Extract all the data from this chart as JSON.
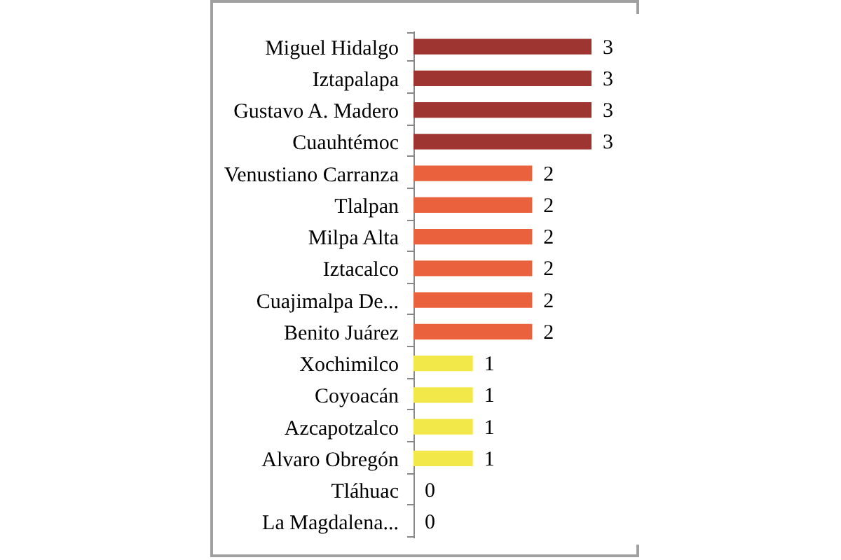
{
  "chart_data": {
    "type": "bar",
    "orientation": "horizontal",
    "data_labels": true,
    "categories": [
      "Miguel Hidalgo",
      "Iztapalapa",
      "Gustavo A. Madero",
      "Cuauhtémoc",
      "Venustiano Carranza",
      "Tlalpan",
      "Milpa Alta",
      "Iztacalco",
      "Cuajimalpa De...",
      "Benito Juárez",
      "Xochimilco",
      "Coyoacán",
      "Azcapotzalco",
      "Alvaro Obregón",
      "Tláhuac",
      "La Magdalena..."
    ],
    "values": [
      3,
      3,
      3,
      3,
      2,
      2,
      2,
      2,
      2,
      2,
      1,
      1,
      1,
      1,
      0,
      0
    ],
    "colors": [
      "#9e3530",
      "#9e3530",
      "#9e3530",
      "#9e3530",
      "#e9623d",
      "#e9623d",
      "#e9623d",
      "#e9623d",
      "#e9623d",
      "#e9623d",
      "#f2e84a",
      "#f2e84a",
      "#f2e84a",
      "#f2e84a",
      "#f2e84a",
      "#f2e84a"
    ]
  }
}
